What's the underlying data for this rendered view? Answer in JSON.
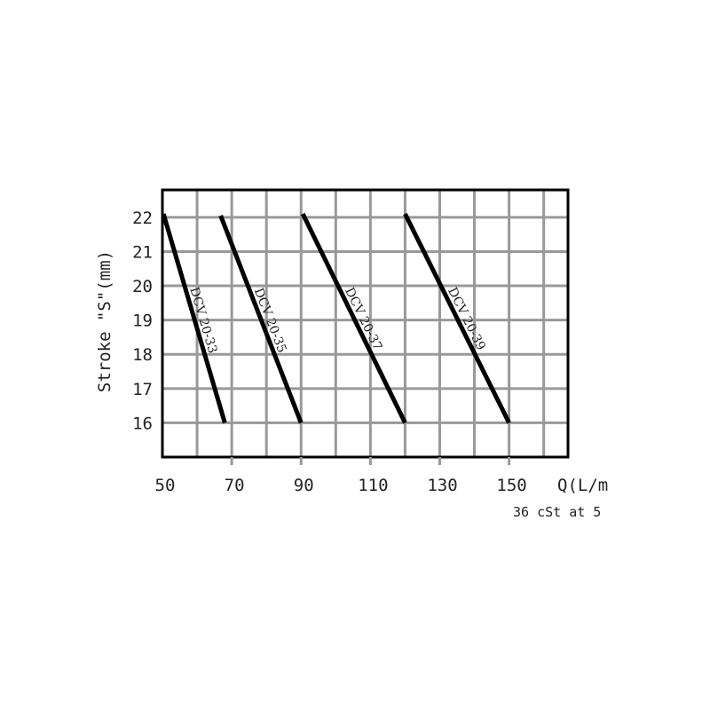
{
  "chart_data": {
    "type": "line",
    "title": "",
    "xlabel": "Q(L/m",
    "ylabel": "Stroke \"S\"(mm)",
    "note": "36 cSt at 5",
    "xlim": [
      50,
      167
    ],
    "ylim": [
      15,
      22.8
    ],
    "x_grid_step": 10,
    "y_grid_step": 1,
    "grid": true,
    "x_ticks": [
      50,
      70,
      90,
      110,
      130,
      150
    ],
    "y_ticks": [
      16,
      17,
      18,
      19,
      20,
      21,
      22
    ],
    "colors": {
      "series": "#000000",
      "grid": "#999999",
      "frame": "#000000"
    },
    "series": [
      {
        "name": "DCV 20-33",
        "points": [
          [
            50.3,
            22.1
          ],
          [
            68,
            16
          ]
        ]
      },
      {
        "name": "DCV 20-35",
        "points": [
          [
            66.8,
            22.05
          ],
          [
            90,
            16
          ]
        ]
      },
      {
        "name": "DCV 20-37",
        "points": [
          [
            90.5,
            22.1
          ],
          [
            120,
            16
          ]
        ]
      },
      {
        "name": "DCV 20-39",
        "points": [
          [
            120,
            22.1
          ],
          [
            150,
            16
          ]
        ]
      }
    ]
  }
}
